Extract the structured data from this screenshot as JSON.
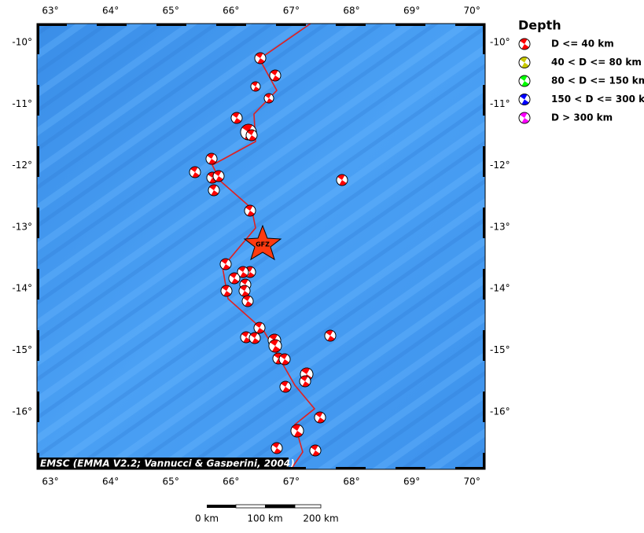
{
  "map": {
    "lon_labels": [
      "63°",
      "64°",
      "65°",
      "66°",
      "67°",
      "68°",
      "69°",
      "70°"
    ],
    "lat_labels": [
      "-10°",
      "-11°",
      "-12°",
      "-13°",
      "-14°",
      "-15°",
      "-16°"
    ],
    "legend": {
      "title": "Depth",
      "items": [
        {
          "label": "D <= 40 km",
          "color": "#ff0000"
        },
        {
          "label": "40 < D <= 80 km",
          "color": "#c8c800"
        },
        {
          "label": "80 < D <= 150 km",
          "color": "#00ff00"
        },
        {
          "label": "150 < D <= 300 km",
          "color": "#0000ff"
        },
        {
          "label": "D > 300 km",
          "color": "#ff00ff"
        }
      ]
    },
    "marker_label": "GFZ",
    "attribution": "EMSC (EMMA V2.2; Vannucci & Gasperini, 2004)",
    "scale_labels": [
      "0 km",
      "100 km",
      "200 km"
    ]
  }
}
